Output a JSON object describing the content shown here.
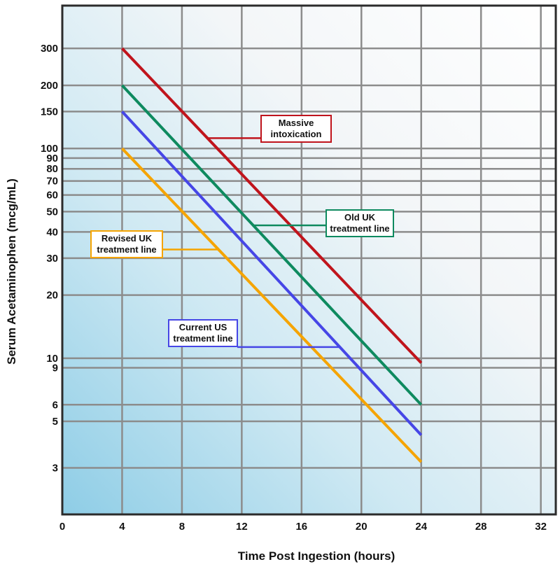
{
  "chart_data": {
    "type": "line",
    "xlabel": "Time Post Ingestion (hours)",
    "ylabel": "Serum Acetaminophen (mcg/mL)",
    "x_ticks": [
      0,
      4,
      8,
      12,
      16,
      20,
      24,
      28,
      32
    ],
    "y_ticks": [
      3,
      5,
      6,
      9,
      10,
      20,
      30,
      40,
      50,
      60,
      70,
      80,
      90,
      100,
      150,
      200,
      300
    ],
    "xlim": [
      0,
      33
    ],
    "ylim": [
      1.8,
      480
    ],
    "y_scale": "log",
    "grid": true,
    "series": [
      {
        "name": "Massive intoxication",
        "color": "#c0141c",
        "x": [
          4,
          24
        ],
        "y": [
          300,
          9.5
        ]
      },
      {
        "name": "Old UK treatment line",
        "color": "#0e8a5f",
        "x": [
          4,
          24
        ],
        "y": [
          200,
          6
        ]
      },
      {
        "name": "Current US treatment line",
        "color": "#4646e6",
        "x": [
          4,
          24
        ],
        "y": [
          150,
          4.3
        ]
      },
      {
        "name": "Revised UK treatment line",
        "color": "#f5a400",
        "x": [
          4,
          24
        ],
        "y": [
          100,
          3.2
        ]
      }
    ],
    "annotations": [
      {
        "lines": [
          "Massive",
          "intoxication"
        ],
        "series": "Massive intoxication",
        "x": 9.7,
        "y": 112
      },
      {
        "lines": [
          "Old UK",
          "treatment line"
        ],
        "series": "Old UK treatment line",
        "x": 12.7,
        "y": 43
      },
      {
        "lines": [
          "Revised UK",
          "treatment line"
        ],
        "series": "Revised UK treatment line",
        "x": 10.5,
        "y": 33
      },
      {
        "lines": [
          "Current US",
          "treatment line"
        ],
        "series": "Current US treatment line",
        "x": 18.5,
        "y": 11.3
      }
    ]
  }
}
